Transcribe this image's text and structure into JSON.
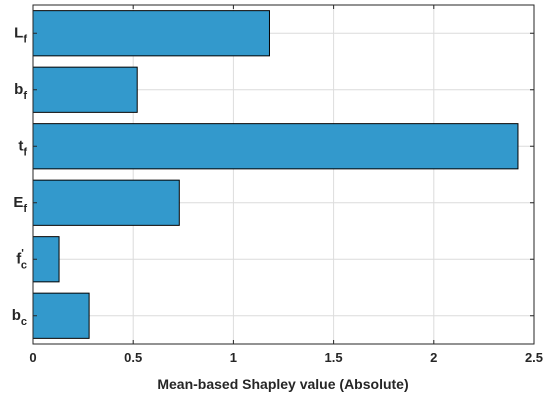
{
  "chart_data": {
    "type": "bar",
    "orientation": "horizontal",
    "categories": [
      {
        "main": "L",
        "sub": "f",
        "sup": ""
      },
      {
        "main": "b",
        "sub": "f",
        "sup": ""
      },
      {
        "main": "t",
        "sub": "f",
        "sup": ""
      },
      {
        "main": "E",
        "sub": "f",
        "sup": ""
      },
      {
        "main": "f",
        "sub": "c",
        "sup": "'"
      },
      {
        "main": "b",
        "sub": "c",
        "sup": ""
      }
    ],
    "values": [
      1.18,
      0.52,
      2.42,
      0.73,
      0.13,
      0.28
    ],
    "xlabel": "Mean-based Shapley value (Absolute)",
    "xlim": [
      0,
      2.5
    ],
    "xticks": [
      "0",
      "0.5",
      "1",
      "1.5",
      "2",
      "2.5"
    ],
    "grid": true,
    "bar_color": "#3399cc",
    "bar_edge_color": "#000000"
  }
}
